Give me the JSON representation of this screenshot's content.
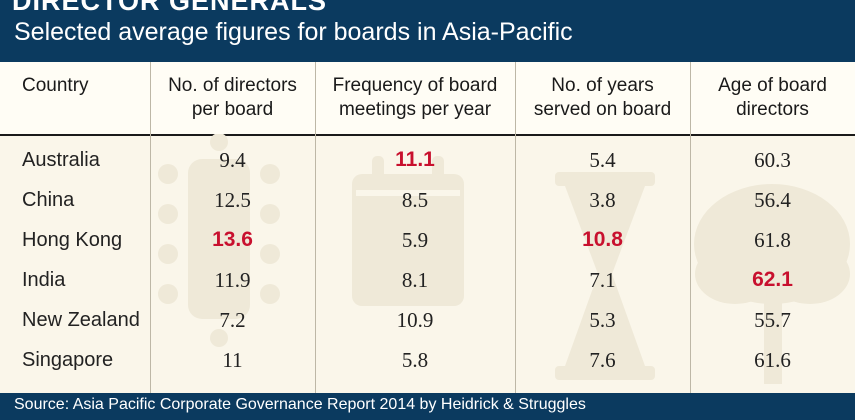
{
  "header": {
    "title": "DIRECTOR GENERALS",
    "subtitle": "Selected average figures for boards in Asia-Pacific"
  },
  "footer": {
    "source": "Source: Asia Pacific Corporate Governance Report 2014 by Heidrick & Struggles"
  },
  "colors": {
    "header_bg": "#0b3a5f",
    "table_bg": "#faf6ea",
    "highlight": "#c8102e",
    "watermark": "#efe9d8"
  },
  "icons": [
    "meeting-table-icon",
    "calendar-icon",
    "hourglass-icon",
    "tree-icon"
  ],
  "chart_data": {
    "type": "table",
    "columns": [
      [
        "Country"
      ],
      [
        "No. of directors",
        "per board"
      ],
      [
        "Frequency of board",
        "meetings per year"
      ],
      [
        "No. of years",
        "served on board"
      ],
      [
        "Age of board",
        "directors"
      ]
    ],
    "rows": [
      {
        "country": "Australia",
        "values": [
          "9.4",
          "11.1",
          "5.4",
          "60.3"
        ],
        "highlight": [
          false,
          true,
          false,
          false
        ]
      },
      {
        "country": "China",
        "values": [
          "12.5",
          "8.5",
          "3.8",
          "56.4"
        ],
        "highlight": [
          false,
          false,
          false,
          false
        ]
      },
      {
        "country": "Hong Kong",
        "values": [
          "13.6",
          "5.9",
          "10.8",
          "61.8"
        ],
        "highlight": [
          true,
          false,
          true,
          false
        ]
      },
      {
        "country": "India",
        "values": [
          "11.9",
          "8.1",
          "7.1",
          "62.1"
        ],
        "highlight": [
          false,
          false,
          false,
          true
        ]
      },
      {
        "country": "New Zealand",
        "values": [
          "7.2",
          "10.9",
          "5.3",
          "55.7"
        ],
        "highlight": [
          false,
          false,
          false,
          false
        ]
      },
      {
        "country": "Singapore",
        "values": [
          "11",
          "5.8",
          "7.6",
          "61.6"
        ],
        "highlight": [
          false,
          false,
          false,
          false
        ]
      }
    ]
  }
}
